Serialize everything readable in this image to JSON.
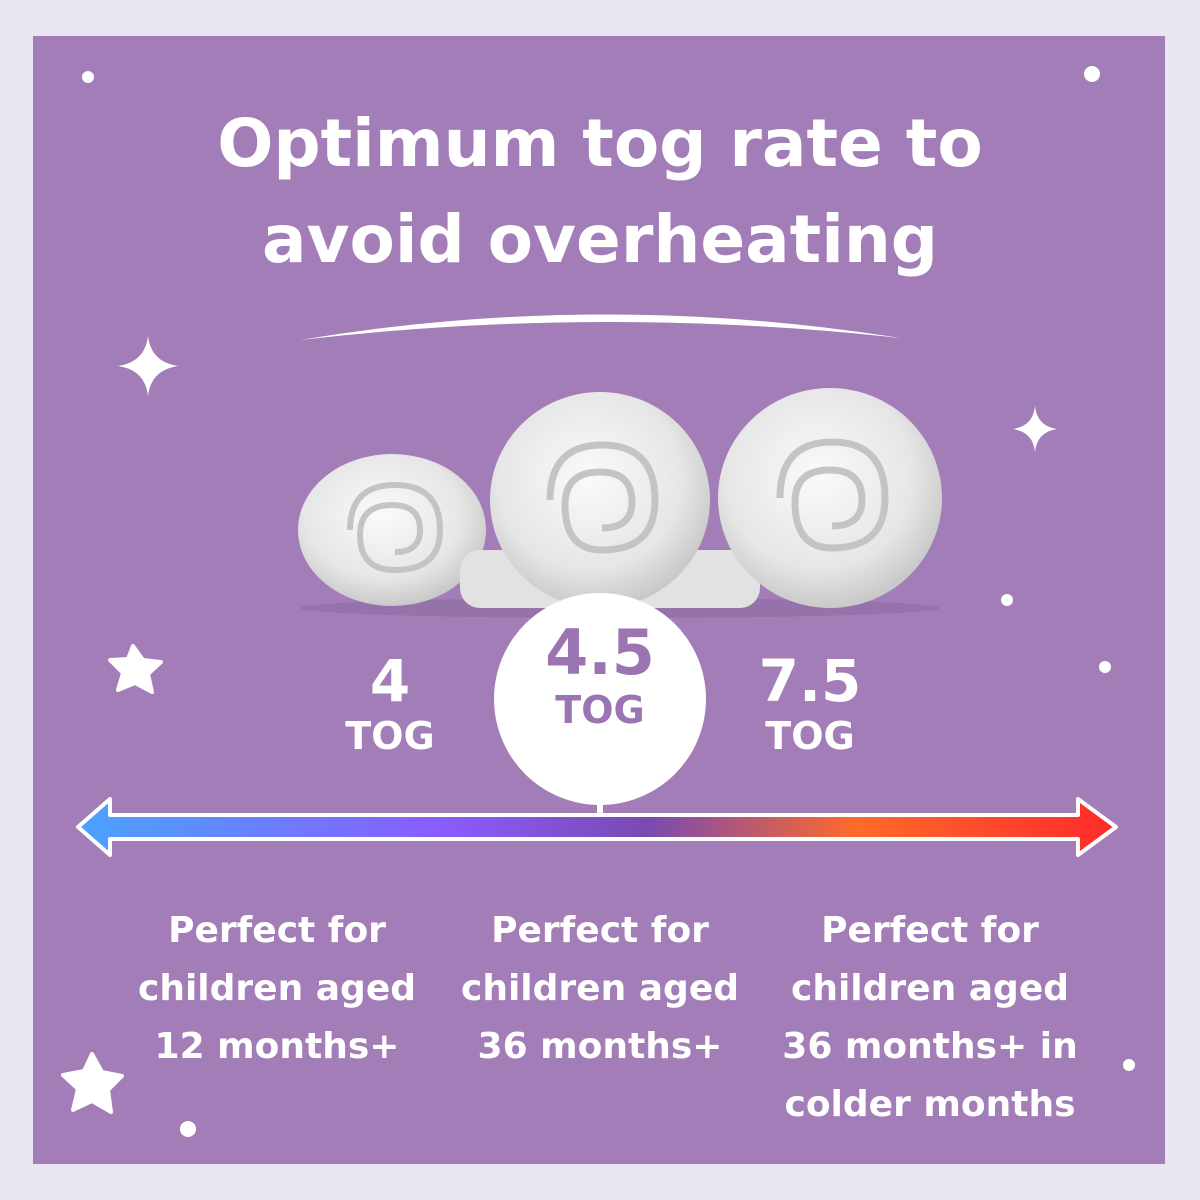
{
  "title": {
    "line1": "Optimum tog rate to",
    "line2": "avoid overheating"
  },
  "tog_options": [
    {
      "value": "4",
      "unit": "TOG"
    },
    {
      "value": "4.5",
      "unit": "TOG"
    },
    {
      "value": "7.5",
      "unit": "TOG"
    }
  ],
  "descriptions": [
    {
      "lines": [
        "Perfect for",
        "children aged",
        "12 months+"
      ]
    },
    {
      "lines": [
        "Perfect for",
        "children aged",
        "36 months+"
      ]
    },
    {
      "lines": [
        "Perfect for",
        "children aged",
        "36 months+ in",
        "colder months"
      ]
    }
  ],
  "colors": {
    "background": "#a27db7",
    "outer_border": "#e9e6f1",
    "highlight_text": "#9b74b2",
    "arrow_cold": "#4aa3ff",
    "arrow_mid": "#8a5cff",
    "arrow_warm": "#ff6a2a",
    "arrow_hot": "#ff2a2a"
  },
  "icons": [
    "sparkle-icon",
    "star-icon",
    "dot-icon",
    "duvet-roll-image",
    "temperature-arrow"
  ]
}
